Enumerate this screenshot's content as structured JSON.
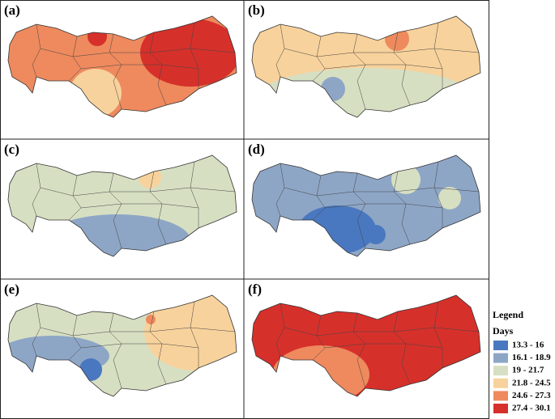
{
  "panels": [
    {
      "label": "(a)"
    },
    {
      "label": "(b)"
    },
    {
      "label": "(c)"
    },
    {
      "label": "(d)"
    },
    {
      "label": "(e)"
    },
    {
      "label": "(f)"
    }
  ],
  "legend": {
    "title": "Legend",
    "subtitle": "Days",
    "items": [
      {
        "label": "13.3 - 16",
        "color": "#4a78c0"
      },
      {
        "label": "16.1 - 18.9",
        "color": "#8ea6c6"
      },
      {
        "label": "19 - 21.7",
        "color": "#d7dfc2"
      },
      {
        "label": "21.8 - 24.5",
        "color": "#f8d29c"
      },
      {
        "label": "24.6 - 27.3",
        "color": "#ee8a5e"
      },
      {
        "label": "27.4 - 30.1",
        "color": "#d6302b"
      }
    ]
  }
}
